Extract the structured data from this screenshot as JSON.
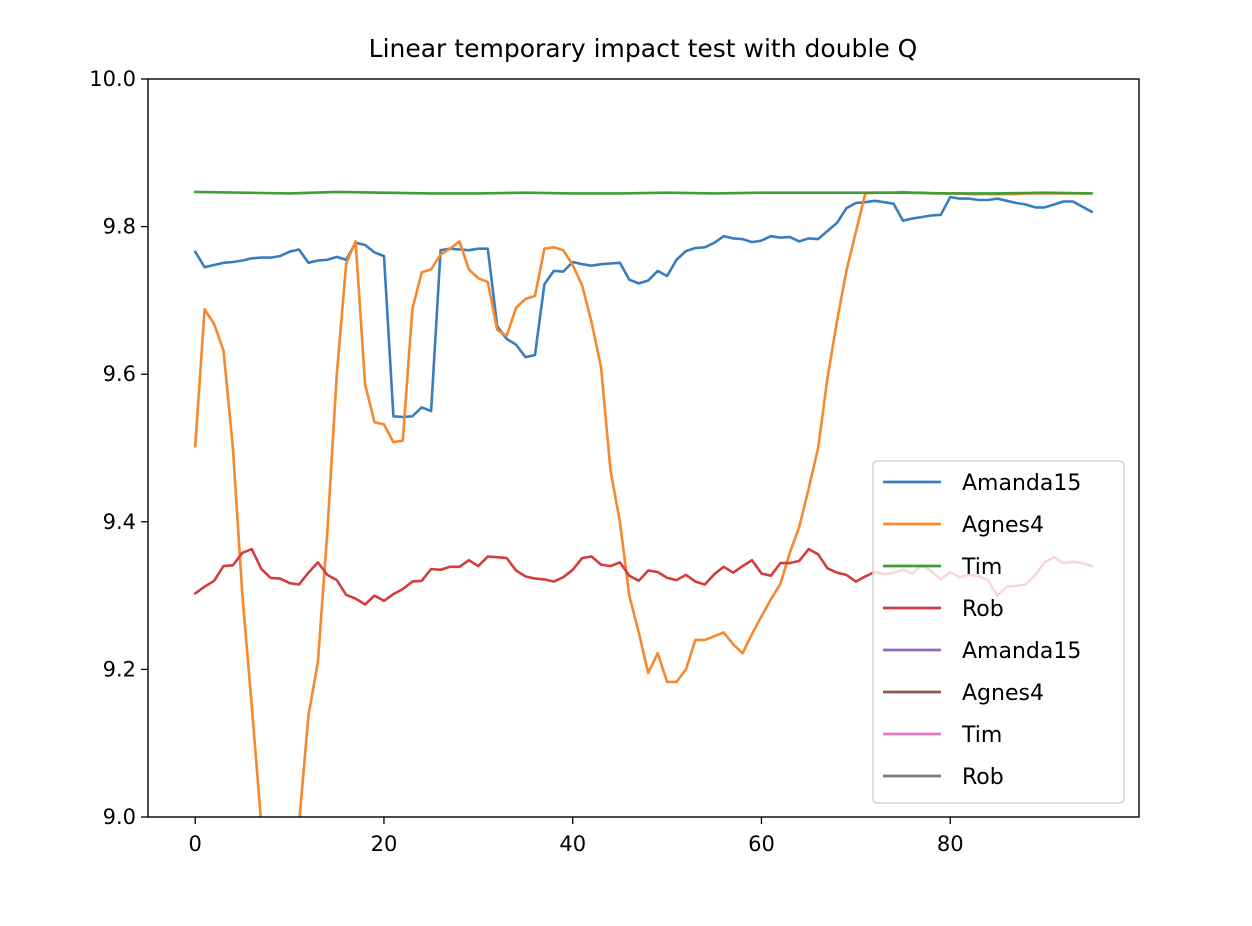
{
  "chart_data": {
    "type": "line",
    "title": "Linear temporary impact test with double Q",
    "xlabel": "",
    "ylabel": "",
    "xlim": [
      -5,
      100
    ],
    "ylim": [
      9.0,
      10.0
    ],
    "xticks": [
      0,
      20,
      40,
      60,
      80
    ],
    "xtick_labels": [
      "0",
      "20",
      "40",
      "60",
      "80"
    ],
    "yticks": [
      9.0,
      9.2,
      9.4,
      9.6,
      9.8,
      10.0
    ],
    "ytick_labels": [
      "9.0",
      "9.2",
      "9.4",
      "9.6",
      "9.8",
      "10.0"
    ],
    "grid": false,
    "legend_position": "lower-right",
    "series": [
      {
        "name": "Amanda15",
        "color": "#3a7dbf",
        "x": [
          0,
          1,
          2,
          3,
          4,
          5,
          6,
          7,
          8,
          9,
          10,
          11,
          12,
          13,
          14,
          15,
          16,
          17,
          18,
          19,
          20,
          21,
          22,
          23,
          24,
          25,
          26,
          27,
          28,
          29,
          30,
          31,
          32,
          33,
          34,
          35,
          36,
          37,
          38,
          39,
          40,
          41,
          42,
          43,
          44,
          45,
          46,
          47,
          48,
          49,
          50,
          51,
          52,
          53,
          54,
          55,
          56,
          57,
          58,
          59,
          60,
          61,
          62,
          63,
          64,
          65,
          66,
          67,
          68,
          69,
          70,
          71,
          72,
          73,
          74,
          75,
          76,
          77,
          78,
          79,
          80,
          81,
          82,
          83,
          84,
          85,
          86,
          87,
          88,
          89,
          90,
          91,
          92,
          93,
          94,
          95
        ],
        "y": [
          9.766,
          9.745,
          9.748,
          9.751,
          9.752,
          9.754,
          9.757,
          9.758,
          9.758,
          9.76,
          9.766,
          9.769,
          9.751,
          9.754,
          9.755,
          9.759,
          9.755,
          9.778,
          9.775,
          9.765,
          9.76,
          9.543,
          9.542,
          9.543,
          9.555,
          9.55,
          9.768,
          9.77,
          9.769,
          9.768,
          9.77,
          9.77,
          9.665,
          9.648,
          9.64,
          9.623,
          9.626,
          9.722,
          9.74,
          9.739,
          9.752,
          9.749,
          9.747,
          9.749,
          9.75,
          9.751,
          9.728,
          9.723,
          9.727,
          9.74,
          9.733,
          9.755,
          9.767,
          9.771,
          9.772,
          9.778,
          9.787,
          9.784,
          9.783,
          9.779,
          9.781,
          9.787,
          9.785,
          9.786,
          9.78,
          9.784,
          9.783,
          9.794,
          9.805,
          9.825,
          9.832,
          9.833,
          9.835,
          9.833,
          9.831,
          9.808,
          9.811,
          9.813,
          9.815,
          9.816,
          9.84,
          9.838,
          9.838,
          9.836,
          9.836,
          9.838,
          9.835,
          9.832,
          9.83,
          9.826,
          9.826,
          9.83,
          9.834,
          9.834,
          9.827,
          9.82
        ]
      },
      {
        "name": "Agnes4",
        "color": "#f5892f",
        "x": [
          0,
          1,
          2,
          3,
          4,
          5,
          6,
          7,
          8,
          9,
          10,
          11,
          12,
          13,
          14,
          15,
          16,
          17,
          18,
          19,
          20,
          21,
          22,
          23,
          24,
          25,
          26,
          27,
          28,
          29,
          30,
          31,
          32,
          33,
          34,
          35,
          36,
          37,
          38,
          39,
          40,
          41,
          42,
          43,
          44,
          45,
          46,
          47,
          48,
          49,
          50,
          51,
          52,
          53,
          54,
          55,
          56,
          57,
          58,
          59,
          60,
          61,
          62,
          63,
          64,
          65,
          66,
          67,
          68,
          69,
          70,
          71,
          72,
          73,
          74,
          75,
          76,
          77,
          78,
          79,
          80,
          81,
          82,
          83,
          84,
          85,
          86,
          87,
          88,
          89,
          90,
          91,
          92,
          93,
          94,
          95
        ],
        "y": [
          9.502,
          9.688,
          9.668,
          9.632,
          9.5,
          9.3,
          9.15,
          8.99,
          8.9,
          8.85,
          8.9,
          8.99,
          9.137,
          9.21,
          9.386,
          9.6,
          9.75,
          9.78,
          9.586,
          9.535,
          9.532,
          9.508,
          9.51,
          9.688,
          9.738,
          9.742,
          9.762,
          9.77,
          9.78,
          9.742,
          9.73,
          9.725,
          9.66,
          9.652,
          9.69,
          9.702,
          9.706,
          9.77,
          9.772,
          9.768,
          9.748,
          9.72,
          9.67,
          9.61,
          9.47,
          9.4,
          9.3,
          9.25,
          9.195,
          9.222,
          9.183,
          9.183,
          9.2,
          9.24,
          9.24,
          9.245,
          9.25,
          9.234,
          9.222,
          9.248,
          9.272,
          9.295,
          9.316,
          9.358,
          9.393,
          9.445,
          9.5,
          9.595,
          9.672,
          9.74,
          9.793,
          9.845,
          9.846,
          9.846,
          9.846,
          9.847,
          9.846,
          9.846,
          9.845,
          9.845,
          9.845,
          9.845,
          9.844,
          9.844,
          9.844,
          9.844,
          9.844,
          9.844,
          9.845,
          9.845,
          9.845,
          9.845,
          9.845,
          9.845,
          9.845,
          9.845
        ]
      },
      {
        "name": "Tim",
        "color": "#3f9e3a",
        "x": [
          0,
          5,
          10,
          15,
          20,
          25,
          30,
          35,
          40,
          45,
          50,
          55,
          60,
          65,
          70,
          75,
          80,
          85,
          90,
          95
        ],
        "y": [
          9.847,
          9.846,
          9.845,
          9.847,
          9.846,
          9.845,
          9.845,
          9.846,
          9.845,
          9.845,
          9.846,
          9.845,
          9.846,
          9.846,
          9.846,
          9.846,
          9.845,
          9.845,
          9.846,
          9.845
        ]
      },
      {
        "name": "Rob",
        "color": "#d33d3d",
        "x": [
          0,
          1,
          2,
          3,
          4,
          5,
          6,
          7,
          8,
          9,
          10,
          11,
          12,
          13,
          14,
          15,
          16,
          17,
          18,
          19,
          20,
          21,
          22,
          23,
          24,
          25,
          26,
          27,
          28,
          29,
          30,
          31,
          32,
          33,
          34,
          35,
          36,
          37,
          38,
          39,
          40,
          41,
          42,
          43,
          44,
          45,
          46,
          47,
          48,
          49,
          50,
          51,
          52,
          53,
          54,
          55,
          56,
          57,
          58,
          59,
          60,
          61,
          62,
          63,
          64,
          65,
          66,
          67,
          68,
          69,
          70,
          71,
          72,
          73,
          74,
          75,
          76,
          77,
          78,
          79,
          80,
          81,
          82,
          83,
          84,
          85,
          86,
          87,
          88,
          89,
          90,
          91,
          92,
          93,
          94,
          95
        ],
        "y": [
          9.303,
          9.312,
          9.32,
          9.34,
          9.341,
          9.358,
          9.363,
          9.336,
          9.324,
          9.323,
          9.317,
          9.315,
          9.331,
          9.345,
          9.328,
          9.321,
          9.301,
          9.296,
          9.288,
          9.3,
          9.293,
          9.302,
          9.309,
          9.319,
          9.32,
          9.336,
          9.335,
          9.339,
          9.339,
          9.348,
          9.34,
          9.353,
          9.352,
          9.351,
          9.334,
          9.326,
          9.323,
          9.322,
          9.319,
          9.325,
          9.335,
          9.351,
          9.353,
          9.342,
          9.34,
          9.345,
          9.327,
          9.32,
          9.334,
          9.332,
          9.324,
          9.321,
          9.328,
          9.319,
          9.315,
          9.329,
          9.339,
          9.331,
          9.34,
          9.348,
          9.33,
          9.327,
          9.344,
          9.344,
          9.347,
          9.363,
          9.356,
          9.337,
          9.331,
          9.328,
          9.319,
          9.326,
          9.332,
          9.329,
          9.331,
          9.335,
          9.33,
          9.341,
          9.333,
          9.322,
          9.332,
          9.325,
          9.328,
          9.326,
          9.321,
          9.3,
          9.312,
          9.313,
          9.315,
          9.328,
          9.345,
          9.352,
          9.344,
          9.346,
          9.344,
          9.34
        ]
      },
      {
        "name": "Amanda15",
        "color": "#9467bd",
        "x": [],
        "y": []
      },
      {
        "name": "Agnes4",
        "color": "#8c564b",
        "x": [],
        "y": []
      },
      {
        "name": "Tim",
        "color": "#e377c2",
        "x": [],
        "y": []
      },
      {
        "name": "Rob",
        "color": "#7f7f7f",
        "x": [],
        "y": []
      }
    ]
  }
}
